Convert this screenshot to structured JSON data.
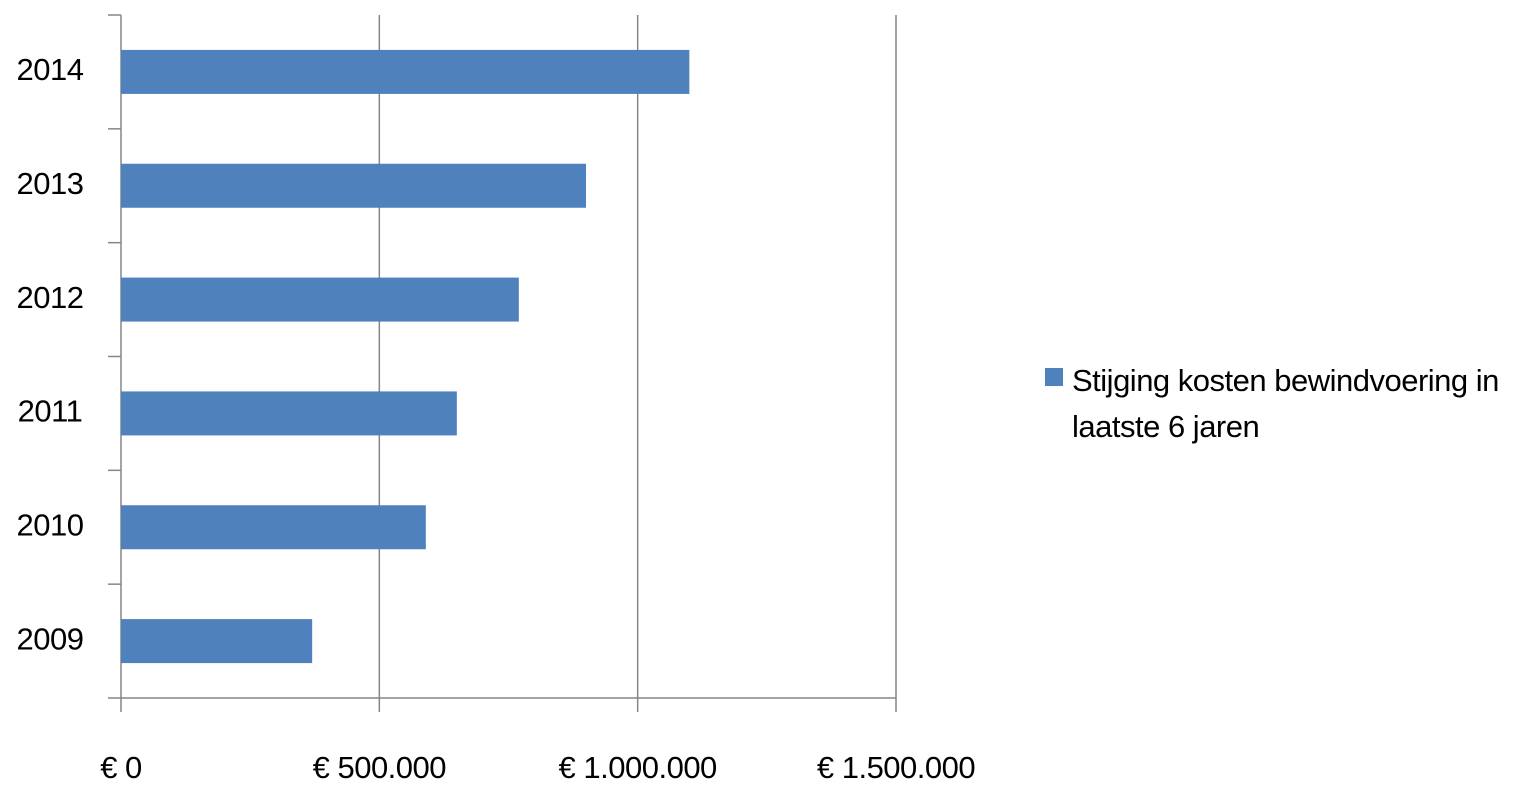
{
  "chart_data": {
    "type": "bar",
    "orientation": "horizontal",
    "categories": [
      "2009",
      "2010",
      "2011",
      "2012",
      "2013",
      "2014"
    ],
    "series": [
      {
        "name": "Stijging kosten bewindvoering in laatste 6 jaren",
        "color": "#4f81bd",
        "values": [
          370000,
          590000,
          650000,
          770000,
          900000,
          1100000
        ]
      }
    ],
    "xlim": [
      0,
      1500000
    ],
    "xticks": [
      {
        "value": 0,
        "label": "€ 0"
      },
      {
        "value": 500000,
        "label": "€ 500.000"
      },
      {
        "value": 1000000,
        "label": "€ 1.000.000"
      },
      {
        "value": 1500000,
        "label": "€ 1.500.000"
      }
    ],
    "grid": true,
    "legend": "right"
  }
}
